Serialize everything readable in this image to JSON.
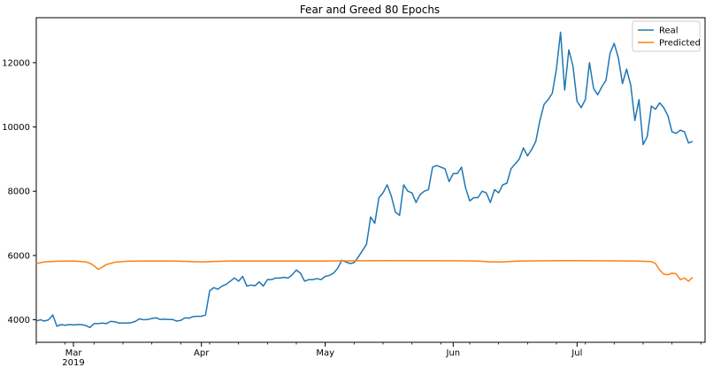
{
  "chart_data": {
    "type": "line",
    "title": "Fear and Greed 80 Epochs",
    "xlabel": "",
    "ylabel": "",
    "x_start": "2019-02-20",
    "x_end": "2019-08-01",
    "ylim": [
      3300,
      13400
    ],
    "grid": false,
    "legend_position": "top-right",
    "y_ticks": [
      {
        "value": 4000,
        "label": "4000"
      },
      {
        "value": 6000,
        "label": "6000"
      },
      {
        "value": 8000,
        "label": "8000"
      },
      {
        "value": 10000,
        "label": "10000"
      },
      {
        "value": 12000,
        "label": "12000"
      }
    ],
    "x_ticks": [
      {
        "date": "2019-03-01",
        "label": "Mar",
        "sublabel": "2019"
      },
      {
        "date": "2019-04-01",
        "label": "Apr",
        "sublabel": ""
      },
      {
        "date": "2019-05-01",
        "label": "May",
        "sublabel": ""
      },
      {
        "date": "2019-06-01",
        "label": "Jun",
        "sublabel": ""
      },
      {
        "date": "2019-07-01",
        "label": "Jul",
        "sublabel": ""
      }
    ],
    "series": [
      {
        "name": "Real",
        "color": "#1f77b4",
        "points": [
          [
            "2019-02-20",
            3960
          ],
          [
            "2019-02-21",
            4000
          ],
          [
            "2019-02-22",
            3960
          ],
          [
            "2019-02-23",
            4000
          ],
          [
            "2019-02-24",
            4150
          ],
          [
            "2019-02-25",
            3800
          ],
          [
            "2019-02-26",
            3850
          ],
          [
            "2019-02-27",
            3830
          ],
          [
            "2019-02-28",
            3850
          ],
          [
            "2019-03-01",
            3840
          ],
          [
            "2019-03-02",
            3850
          ],
          [
            "2019-03-03",
            3850
          ],
          [
            "2019-03-04",
            3820
          ],
          [
            "2019-03-05",
            3760
          ],
          [
            "2019-03-06",
            3880
          ],
          [
            "2019-03-07",
            3880
          ],
          [
            "2019-03-08",
            3900
          ],
          [
            "2019-03-09",
            3880
          ],
          [
            "2019-03-10",
            3950
          ],
          [
            "2019-03-11",
            3940
          ],
          [
            "2019-03-12",
            3900
          ],
          [
            "2019-03-13",
            3900
          ],
          [
            "2019-03-14",
            3900
          ],
          [
            "2019-03-15",
            3910
          ],
          [
            "2019-03-16",
            3950
          ],
          [
            "2019-03-17",
            4030
          ],
          [
            "2019-03-18",
            4000
          ],
          [
            "2019-03-19",
            4010
          ],
          [
            "2019-03-20",
            4040
          ],
          [
            "2019-03-21",
            4060
          ],
          [
            "2019-03-22",
            4010
          ],
          [
            "2019-03-23",
            4020
          ],
          [
            "2019-03-24",
            4010
          ],
          [
            "2019-03-25",
            4010
          ],
          [
            "2019-03-26",
            3960
          ],
          [
            "2019-03-27",
            3980
          ],
          [
            "2019-03-28",
            4060
          ],
          [
            "2019-03-29",
            4050
          ],
          [
            "2019-03-30",
            4100
          ],
          [
            "2019-03-31",
            4110
          ],
          [
            "2019-04-01",
            4110
          ],
          [
            "2019-04-02",
            4150
          ],
          [
            "2019-04-03",
            4900
          ],
          [
            "2019-04-04",
            5000
          ],
          [
            "2019-04-05",
            4950
          ],
          [
            "2019-04-06",
            5050
          ],
          [
            "2019-04-07",
            5100
          ],
          [
            "2019-04-08",
            5200
          ],
          [
            "2019-04-09",
            5300
          ],
          [
            "2019-04-10",
            5200
          ],
          [
            "2019-04-11",
            5350
          ],
          [
            "2019-04-12",
            5050
          ],
          [
            "2019-04-13",
            5080
          ],
          [
            "2019-04-14",
            5060
          ],
          [
            "2019-04-15",
            5180
          ],
          [
            "2019-04-16",
            5050
          ],
          [
            "2019-04-17",
            5250
          ],
          [
            "2019-04-18",
            5250
          ],
          [
            "2019-04-19",
            5300
          ],
          [
            "2019-04-20",
            5300
          ],
          [
            "2019-04-21",
            5320
          ],
          [
            "2019-04-22",
            5300
          ],
          [
            "2019-04-23",
            5400
          ],
          [
            "2019-04-24",
            5550
          ],
          [
            "2019-04-25",
            5450
          ],
          [
            "2019-04-26",
            5200
          ],
          [
            "2019-04-27",
            5250
          ],
          [
            "2019-04-28",
            5250
          ],
          [
            "2019-04-29",
            5280
          ],
          [
            "2019-04-30",
            5250
          ],
          [
            "2019-05-01",
            5350
          ],
          [
            "2019-05-02",
            5380
          ],
          [
            "2019-05-03",
            5450
          ],
          [
            "2019-05-04",
            5600
          ],
          [
            "2019-05-05",
            5850
          ],
          [
            "2019-05-06",
            5800
          ],
          [
            "2019-05-07",
            5750
          ],
          [
            "2019-05-08",
            5780
          ],
          [
            "2019-05-09",
            5950
          ],
          [
            "2019-05-10",
            6150
          ],
          [
            "2019-05-11",
            6350
          ],
          [
            "2019-05-12",
            7200
          ],
          [
            "2019-05-13",
            7000
          ],
          [
            "2019-05-14",
            7800
          ],
          [
            "2019-05-15",
            7950
          ],
          [
            "2019-05-16",
            8200
          ],
          [
            "2019-05-17",
            7850
          ],
          [
            "2019-05-18",
            7350
          ],
          [
            "2019-05-19",
            7250
          ],
          [
            "2019-05-20",
            8200
          ],
          [
            "2019-05-21",
            8000
          ],
          [
            "2019-05-22",
            7950
          ],
          [
            "2019-05-23",
            7650
          ],
          [
            "2019-05-24",
            7900
          ],
          [
            "2019-05-25",
            8000
          ],
          [
            "2019-05-26",
            8050
          ],
          [
            "2019-05-27",
            8750
          ],
          [
            "2019-05-28",
            8800
          ],
          [
            "2019-05-29",
            8750
          ],
          [
            "2019-05-30",
            8700
          ],
          [
            "2019-05-31",
            8300
          ],
          [
            "2019-06-01",
            8550
          ],
          [
            "2019-06-02",
            8550
          ],
          [
            "2019-06-03",
            8750
          ],
          [
            "2019-06-04",
            8100
          ],
          [
            "2019-06-05",
            7700
          ],
          [
            "2019-06-06",
            7800
          ],
          [
            "2019-06-07",
            7800
          ],
          [
            "2019-06-08",
            8000
          ],
          [
            "2019-06-09",
            7950
          ],
          [
            "2019-06-10",
            7650
          ],
          [
            "2019-06-11",
            8050
          ],
          [
            "2019-06-12",
            7950
          ],
          [
            "2019-06-13",
            8200
          ],
          [
            "2019-06-14",
            8250
          ],
          [
            "2019-06-15",
            8700
          ],
          [
            "2019-06-16",
            8850
          ],
          [
            "2019-06-17",
            9000
          ],
          [
            "2019-06-18",
            9350
          ],
          [
            "2019-06-19",
            9100
          ],
          [
            "2019-06-20",
            9300
          ],
          [
            "2019-06-21",
            9550
          ],
          [
            "2019-06-22",
            10200
          ],
          [
            "2019-06-23",
            10700
          ],
          [
            "2019-06-24",
            10850
          ],
          [
            "2019-06-25",
            11050
          ],
          [
            "2019-06-26",
            11800
          ],
          [
            "2019-06-27",
            12950
          ],
          [
            "2019-06-28",
            11150
          ],
          [
            "2019-06-29",
            12400
          ],
          [
            "2019-06-30",
            11900
          ],
          [
            "2019-07-01",
            10800
          ],
          [
            "2019-07-02",
            10600
          ],
          [
            "2019-07-03",
            10850
          ],
          [
            "2019-07-04",
            12000
          ],
          [
            "2019-07-05",
            11200
          ],
          [
            "2019-07-06",
            11000
          ],
          [
            "2019-07-07",
            11250
          ],
          [
            "2019-07-08",
            11450
          ],
          [
            "2019-07-09",
            12300
          ],
          [
            "2019-07-10",
            12600
          ],
          [
            "2019-07-11",
            12150
          ],
          [
            "2019-07-12",
            11350
          ],
          [
            "2019-07-13",
            11800
          ],
          [
            "2019-07-14",
            11300
          ],
          [
            "2019-07-15",
            10200
          ],
          [
            "2019-07-16",
            10850
          ],
          [
            "2019-07-17",
            9450
          ],
          [
            "2019-07-18",
            9700
          ],
          [
            "2019-07-19",
            10650
          ],
          [
            "2019-07-20",
            10550
          ],
          [
            "2019-07-21",
            10750
          ],
          [
            "2019-07-22",
            10600
          ],
          [
            "2019-07-23",
            10350
          ],
          [
            "2019-07-24",
            9850
          ],
          [
            "2019-07-25",
            9800
          ],
          [
            "2019-07-26",
            9900
          ],
          [
            "2019-07-27",
            9850
          ],
          [
            "2019-07-28",
            9500
          ],
          [
            "2019-07-29",
            9550
          ]
        ]
      },
      {
        "name": "Predicted",
        "color": "#ff7f0e",
        "points": [
          [
            "2019-02-20",
            5750
          ],
          [
            "2019-02-22",
            5800
          ],
          [
            "2019-02-25",
            5820
          ],
          [
            "2019-03-01",
            5830
          ],
          [
            "2019-03-04",
            5800
          ],
          [
            "2019-03-05",
            5760
          ],
          [
            "2019-03-06",
            5680
          ],
          [
            "2019-03-07",
            5570
          ],
          [
            "2019-03-08",
            5640
          ],
          [
            "2019-03-09",
            5720
          ],
          [
            "2019-03-11",
            5790
          ],
          [
            "2019-03-14",
            5820
          ],
          [
            "2019-03-18",
            5830
          ],
          [
            "2019-03-25",
            5830
          ],
          [
            "2019-04-01",
            5800
          ],
          [
            "2019-04-08",
            5830
          ],
          [
            "2019-04-15",
            5830
          ],
          [
            "2019-05-01",
            5830
          ],
          [
            "2019-05-15",
            5840
          ],
          [
            "2019-06-01",
            5835
          ],
          [
            "2019-06-07",
            5830
          ],
          [
            "2019-06-10",
            5800
          ],
          [
            "2019-06-13",
            5800
          ],
          [
            "2019-06-17",
            5830
          ],
          [
            "2019-07-01",
            5840
          ],
          [
            "2019-07-15",
            5830
          ],
          [
            "2019-07-19",
            5810
          ],
          [
            "2019-07-20",
            5750
          ],
          [
            "2019-07-21",
            5550
          ],
          [
            "2019-07-22",
            5420
          ],
          [
            "2019-07-23",
            5400
          ],
          [
            "2019-07-24",
            5450
          ],
          [
            "2019-07-25",
            5430
          ],
          [
            "2019-07-26",
            5250
          ],
          [
            "2019-07-27",
            5300
          ],
          [
            "2019-07-28",
            5200
          ],
          [
            "2019-07-29",
            5320
          ]
        ]
      }
    ]
  }
}
